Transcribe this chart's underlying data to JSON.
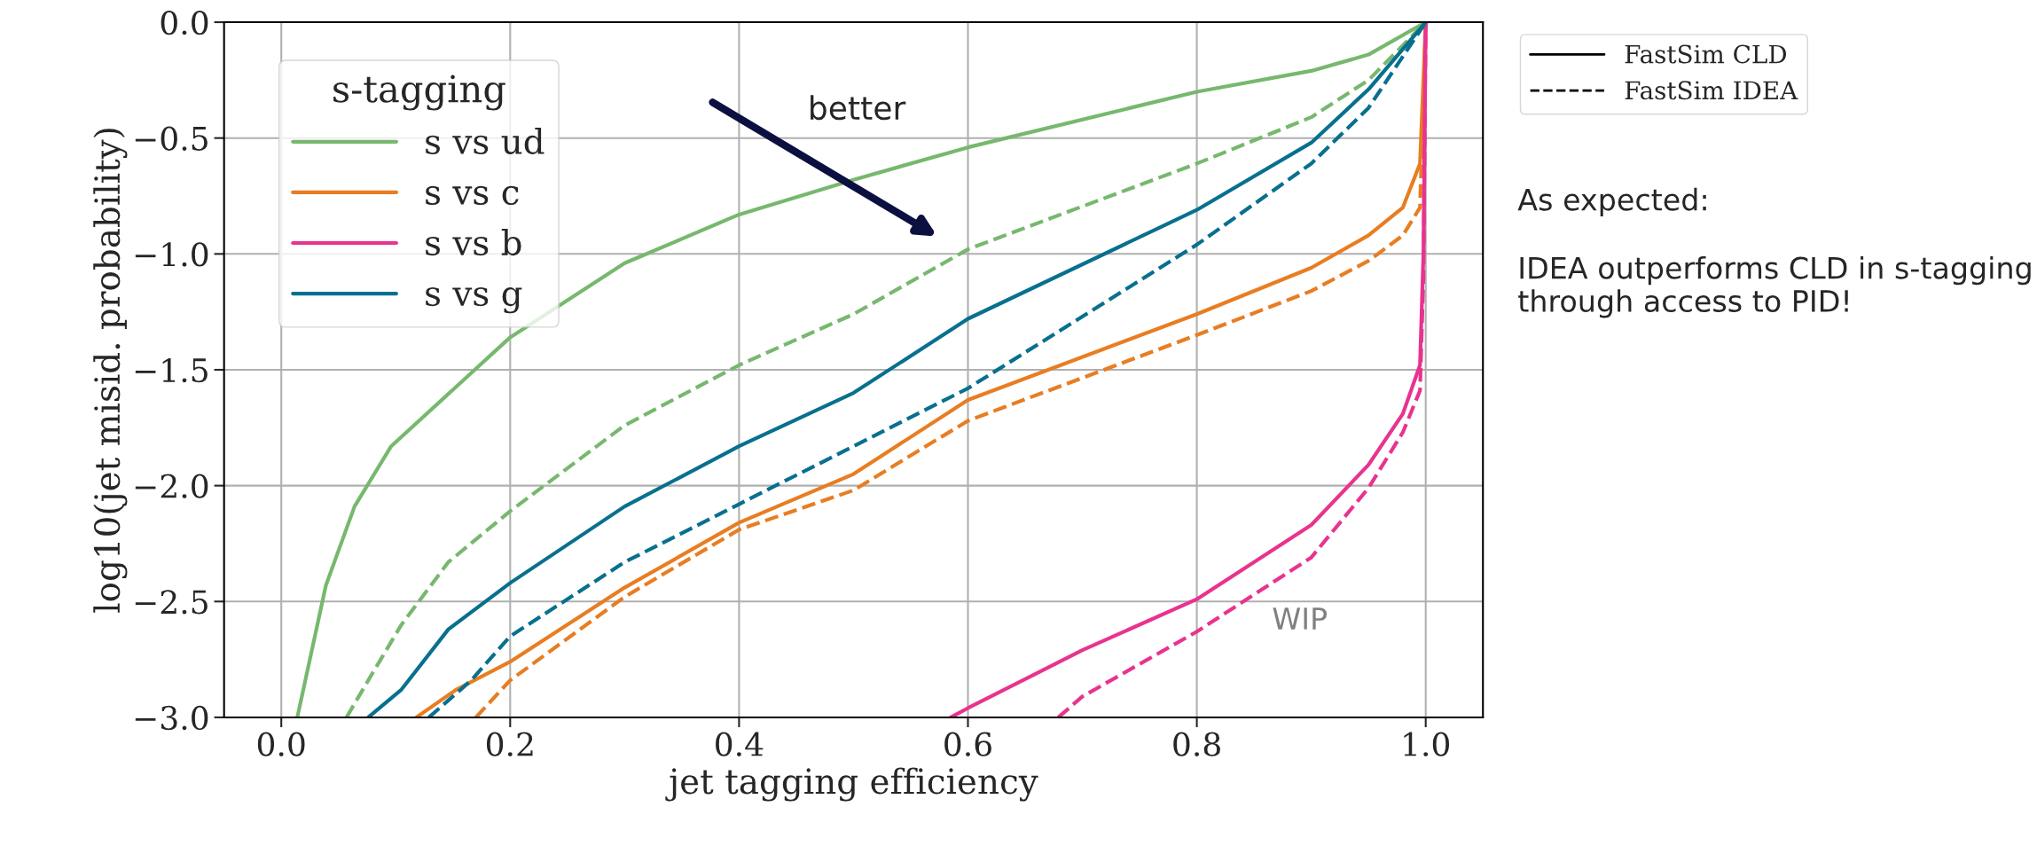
{
  "chart_data": {
    "type": "line",
    "xlabel": "jet tagging efficiency",
    "ylabel": "log10(jet misid. probability)",
    "legend_title": "s-tagging",
    "legend": "top left",
    "grid": true,
    "xlim": [
      -0.05,
      1.05
    ],
    "ylim": [
      -3.0,
      0.0
    ],
    "xticks": [
      {
        "value": 0.0,
        "label": "0.0"
      },
      {
        "value": 0.2,
        "label": "0.2"
      },
      {
        "value": 0.4,
        "label": "0.4"
      },
      {
        "value": 0.6,
        "label": "0.6"
      },
      {
        "value": 0.8,
        "label": "0.8"
      },
      {
        "value": 1.0,
        "label": "1.0"
      }
    ],
    "yticks": [
      {
        "value": -3.0,
        "label": "−3.0"
      },
      {
        "value": -2.5,
        "label": "−2.5"
      },
      {
        "value": -2.0,
        "label": "−2.0"
      },
      {
        "value": -1.5,
        "label": "−1.5"
      },
      {
        "value": -1.0,
        "label": "−1.0"
      },
      {
        "value": -0.5,
        "label": "−0.5"
      },
      {
        "value": 0.0,
        "label": "0.0"
      }
    ],
    "series": [
      {
        "name": "s vs ud",
        "color": "#77b86e",
        "line_style": "solid",
        "x": [
          0.014,
          0.039,
          0.064,
          0.096,
          0.2,
          0.3,
          0.4,
          0.5,
          0.6,
          0.8,
          0.9,
          0.95,
          1.0
        ],
        "values": [
          -3.0,
          -2.43,
          -2.09,
          -1.83,
          -1.36,
          -1.04,
          -0.83,
          -0.68,
          -0.54,
          -0.3,
          -0.21,
          -0.14,
          0.0
        ]
      },
      {
        "color": "#77b86e",
        "line_style": "dashed",
        "x": [
          0.057,
          0.076,
          0.105,
          0.146,
          0.2,
          0.3,
          0.4,
          0.5,
          0.6,
          0.8,
          0.9,
          0.95,
          1.0
        ],
        "values": [
          -3.0,
          -2.84,
          -2.6,
          -2.33,
          -2.11,
          -1.74,
          -1.48,
          -1.26,
          -0.98,
          -0.61,
          -0.41,
          -0.25,
          0.0
        ]
      },
      {
        "name": "s vs c",
        "color": "#e87d22",
        "line_style": "solid",
        "x": [
          0.118,
          0.153,
          0.2,
          0.3,
          0.4,
          0.5,
          0.6,
          0.8,
          0.9,
          0.95,
          0.98,
          0.995,
          1.0
        ],
        "values": [
          -3.0,
          -2.88,
          -2.76,
          -2.44,
          -2.16,
          -1.95,
          -1.63,
          -1.26,
          -1.06,
          -0.92,
          -0.8,
          -0.61,
          0.0
        ]
      },
      {
        "color": "#e87d22",
        "line_style": "dashed",
        "x": [
          0.17,
          0.2,
          0.3,
          0.4,
          0.5,
          0.6,
          0.8,
          0.9,
          0.95,
          0.98,
          0.995,
          1.0
        ],
        "values": [
          -3.0,
          -2.84,
          -2.48,
          -2.19,
          -2.02,
          -1.72,
          -1.35,
          -1.16,
          -1.03,
          -0.92,
          -0.8,
          0.0
        ]
      },
      {
        "name": "s vs b",
        "color": "#e8338f",
        "line_style": "solid",
        "x": [
          0.585,
          0.6,
          0.7,
          0.8,
          0.9,
          0.95,
          0.98,
          0.995,
          0.998,
          1.0
        ],
        "values": [
          -3.0,
          -2.96,
          -2.71,
          -2.49,
          -2.17,
          -1.91,
          -1.69,
          -1.48,
          -1.0,
          0.0
        ]
      },
      {
        "color": "#e8338f",
        "line_style": "dashed",
        "x": [
          0.679,
          0.7,
          0.8,
          0.9,
          0.95,
          0.98,
          0.995,
          0.998,
          1.0
        ],
        "values": [
          -3.0,
          -2.91,
          -2.63,
          -2.31,
          -2.01,
          -1.77,
          -1.59,
          -1.1,
          0.0
        ]
      },
      {
        "name": "s vs g",
        "color": "#08708e",
        "line_style": "solid",
        "x": [
          0.076,
          0.105,
          0.146,
          0.2,
          0.3,
          0.4,
          0.5,
          0.6,
          0.8,
          0.9,
          0.95,
          1.0
        ],
        "values": [
          -3.0,
          -2.88,
          -2.62,
          -2.42,
          -2.09,
          -1.83,
          -1.6,
          -1.28,
          -0.81,
          -0.52,
          -0.29,
          0.0
        ]
      },
      {
        "color": "#08708e",
        "line_style": "dashed",
        "x": [
          0.129,
          0.166,
          0.2,
          0.3,
          0.4,
          0.5,
          0.6,
          0.8,
          0.9,
          0.95,
          1.0
        ],
        "values": [
          -3.0,
          -2.84,
          -2.65,
          -2.33,
          -2.08,
          -1.83,
          -1.58,
          -0.96,
          -0.61,
          -0.37,
          0.0
        ]
      }
    ],
    "annotations": [
      "FastSim CLD",
      "FastSim IDEA",
      "better",
      "WIP",
      "As expected:",
      "IDEA outperforms CLD in s-tagging through access to PID!"
    ]
  }
}
